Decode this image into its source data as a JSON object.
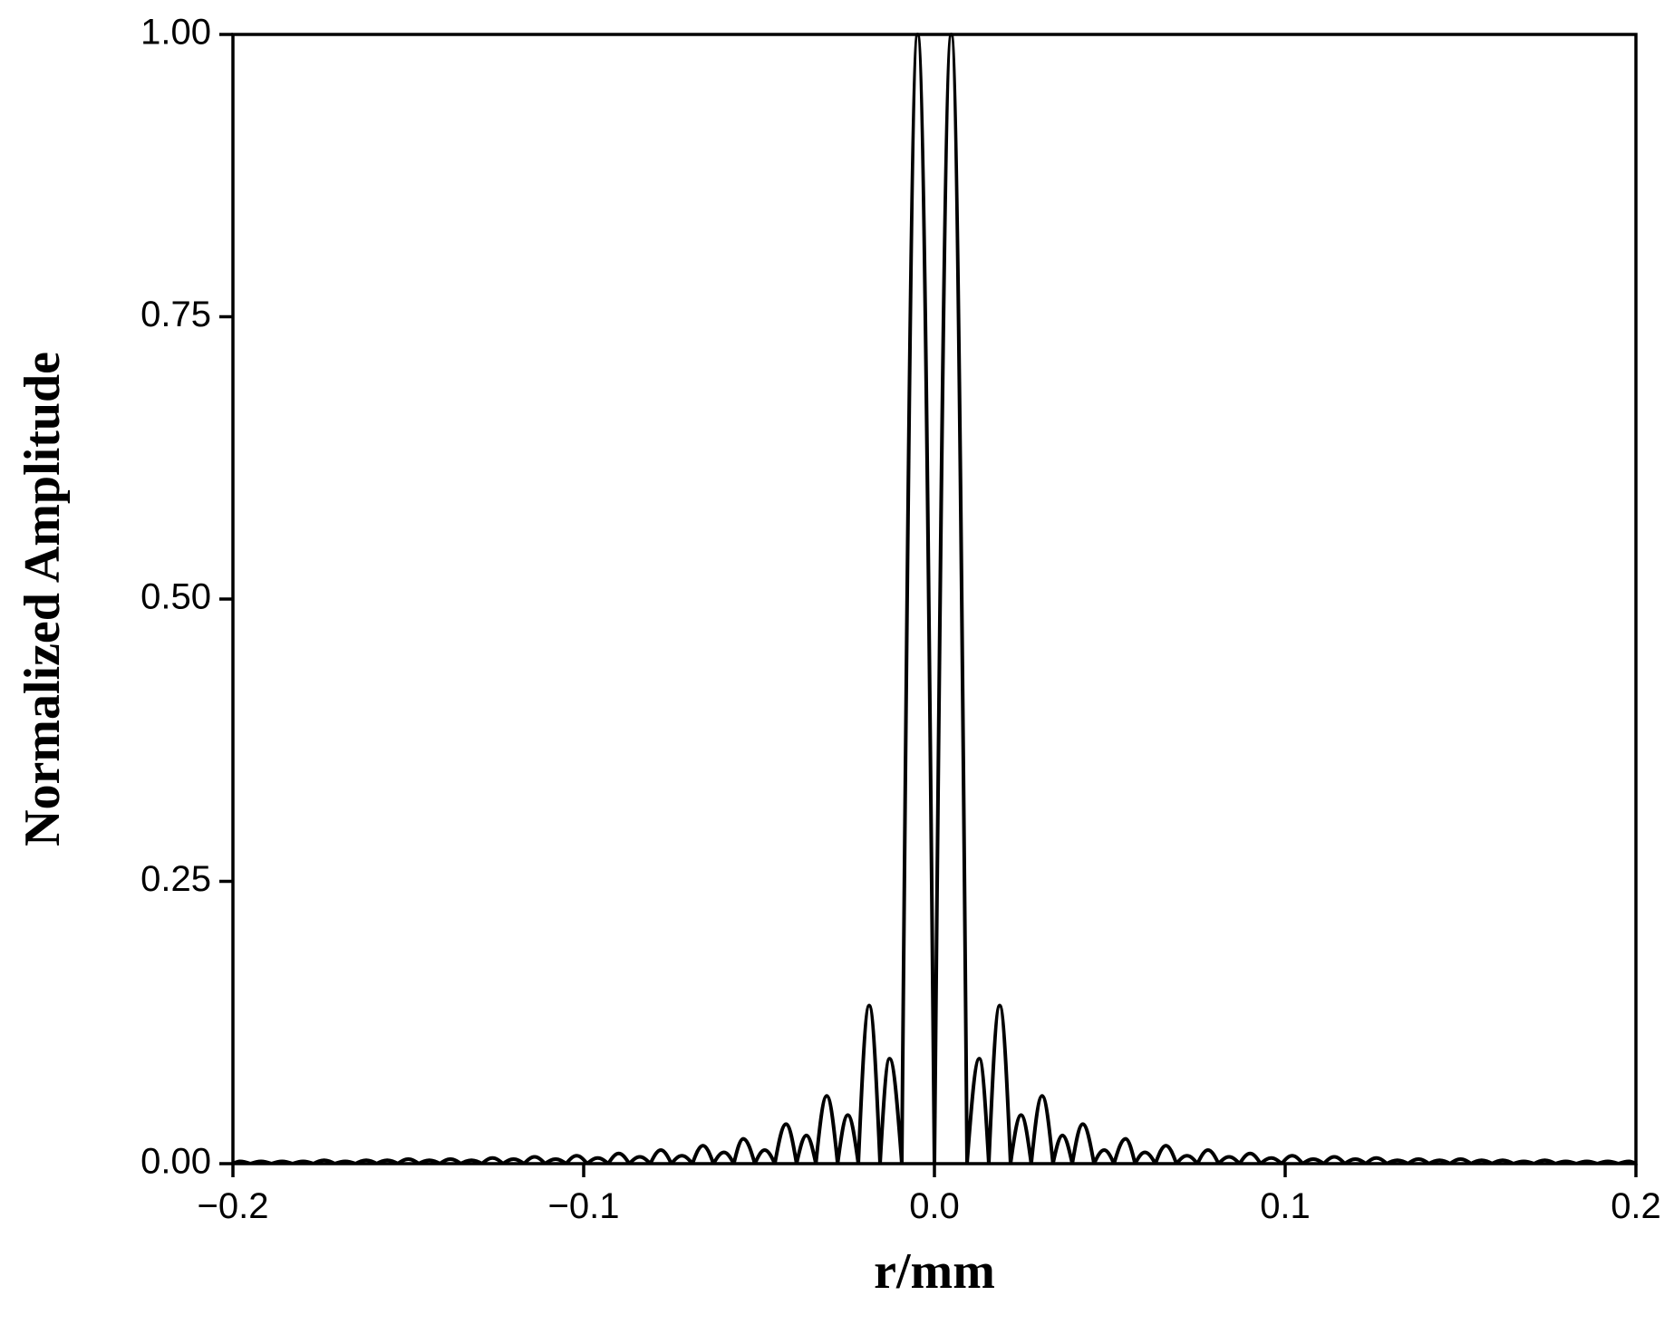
{
  "chart_data": {
    "type": "line",
    "xlabel": "r/mm",
    "ylabel": "Normalized Amplitude",
    "xlim": [
      -0.2,
      0.2
    ],
    "ylim": [
      0,
      1
    ],
    "xticks": [
      {
        "value": -0.2,
        "label": "−0.2"
      },
      {
        "value": -0.1,
        "label": "−0.1"
      },
      {
        "value": 0,
        "label": "0.0"
      },
      {
        "value": 0.1,
        "label": "0.1"
      },
      {
        "value": 0.2,
        "label": "0.2"
      }
    ],
    "yticks": [
      {
        "value": 0,
        "label": "0.00"
      },
      {
        "value": 0.25,
        "label": "0.25"
      },
      {
        "value": 0.5,
        "label": "0.50"
      },
      {
        "value": 0.75,
        "label": "0.75"
      },
      {
        "value": 1,
        "label": "1.00"
      }
    ],
    "grid": false,
    "series": [
      {
        "color": "#000000",
        "x": [
          -0.2,
          -0.198,
          -0.195,
          -0.192,
          -0.189,
          -0.186,
          -0.183,
          -0.18,
          -0.177,
          -0.174,
          -0.171,
          -0.168,
          -0.165,
          -0.162,
          -0.159,
          -0.156,
          -0.153,
          -0.15,
          -0.147,
          -0.144,
          -0.141,
          -0.138,
          -0.135,
          -0.132,
          -0.129,
          -0.126,
          -0.123,
          -0.12,
          -0.117,
          -0.114,
          -0.111,
          -0.108,
          -0.105,
          -0.102,
          -0.099,
          -0.096,
          -0.093,
          -0.09,
          -0.087,
          -0.084,
          -0.081,
          -0.078,
          -0.075,
          -0.072,
          -0.069,
          -0.066,
          -0.063,
          -0.06,
          -0.0572,
          -0.0545,
          -0.0512,
          -0.0484,
          -0.0455,
          -0.0423,
          -0.0393,
          -0.0365,
          -0.0338,
          -0.0307,
          -0.0276,
          -0.0247,
          -0.0217,
          -0.0186,
          -0.0155,
          -0.0128,
          -0.0093,
          -0.0048,
          0,
          0.0048,
          0.0093,
          0.0128,
          0.0155,
          0.0186,
          0.0217,
          0.0247,
          0.0276,
          0.0307,
          0.0338,
          0.0365,
          0.0393,
          0.0423,
          0.0455,
          0.0484,
          0.0512,
          0.0545,
          0.0572,
          0.06,
          0.063,
          0.066,
          0.069,
          0.072,
          0.075,
          0.078,
          0.081,
          0.084,
          0.087,
          0.09,
          0.093,
          0.096,
          0.099,
          0.102,
          0.105,
          0.108,
          0.111,
          0.114,
          0.117,
          0.12,
          0.123,
          0.126,
          0.129,
          0.132,
          0.135,
          0.138,
          0.141,
          0.144,
          0.147,
          0.15,
          0.153,
          0.156,
          0.159,
          0.162,
          0.165,
          0.168,
          0.171,
          0.174,
          0.177,
          0.18,
          0.183,
          0.186,
          0.189,
          0.192,
          0.195,
          0.198,
          0.2
        ],
        "values": [
          0,
          0.002,
          0,
          0.002,
          0,
          0.002,
          0,
          0.002,
          0,
          0.003,
          0,
          0.002,
          0,
          0.003,
          0,
          0.003,
          0,
          0.004,
          0,
          0.003,
          0,
          0.004,
          0,
          0.003,
          0,
          0.005,
          0,
          0.004,
          0,
          0.006,
          0,
          0.004,
          0,
          0.007,
          0,
          0.005,
          0,
          0.009,
          0,
          0.006,
          0,
          0.012,
          0,
          0.007,
          0,
          0.016,
          0,
          0.01,
          0,
          0.022,
          0,
          0.012,
          0,
          0.035,
          0,
          0.025,
          0,
          0.06,
          0,
          0.043,
          0,
          0.14,
          0,
          0.093,
          0,
          1.0,
          0,
          1.0,
          0,
          0.093,
          0,
          0.14,
          0,
          0.043,
          0,
          0.06,
          0,
          0.025,
          0,
          0.035,
          0,
          0.012,
          0,
          0.022,
          0,
          0.01,
          0,
          0.016,
          0,
          0.007,
          0,
          0.012,
          0,
          0.006,
          0,
          0.009,
          0,
          0.005,
          0,
          0.007,
          0,
          0.004,
          0,
          0.006,
          0,
          0.004,
          0,
          0.005,
          0,
          0.003,
          0,
          0.004,
          0,
          0.003,
          0,
          0.004,
          0,
          0.003,
          0,
          0.003,
          0,
          0.002,
          0,
          0.003,
          0,
          0.002,
          0,
          0.002,
          0,
          0.002,
          0,
          0.002,
          0
        ]
      }
    ]
  }
}
